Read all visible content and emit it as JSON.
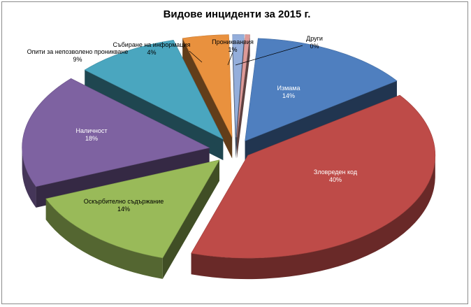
{
  "chart_data": {
    "type": "pie",
    "title": "Видове инциденти за 2015 г.",
    "slices": [
      {
        "label": "Измама",
        "value_label": "14%",
        "value": 14,
        "color": "#4f7fbf"
      },
      {
        "label": "Зловреден код",
        "value_label": "40%",
        "value": 40,
        "color": "#be4b48"
      },
      {
        "label": "Оскърбително съдържание",
        "value_label": "14%",
        "value": 14,
        "color": "#99ba59"
      },
      {
        "label": "Наличност",
        "value_label": "18%",
        "value": 18,
        "color": "#7e62a1"
      },
      {
        "label": "Опити за непозволено проникване",
        "value_label": "9%",
        "value": 9,
        "color": "#4aa6bf"
      },
      {
        "label": "Събиране на информация",
        "value_label": "4%",
        "value": 4,
        "color": "#e9913e"
      },
      {
        "label": "Проникванвия",
        "value_label": "1%",
        "value": 1,
        "color": "#94aedb"
      },
      {
        "label": "Други",
        "value_label": "0%",
        "value": 0.4,
        "color": "#de9a98"
      }
    ],
    "exploded": true,
    "three_d": true
  }
}
